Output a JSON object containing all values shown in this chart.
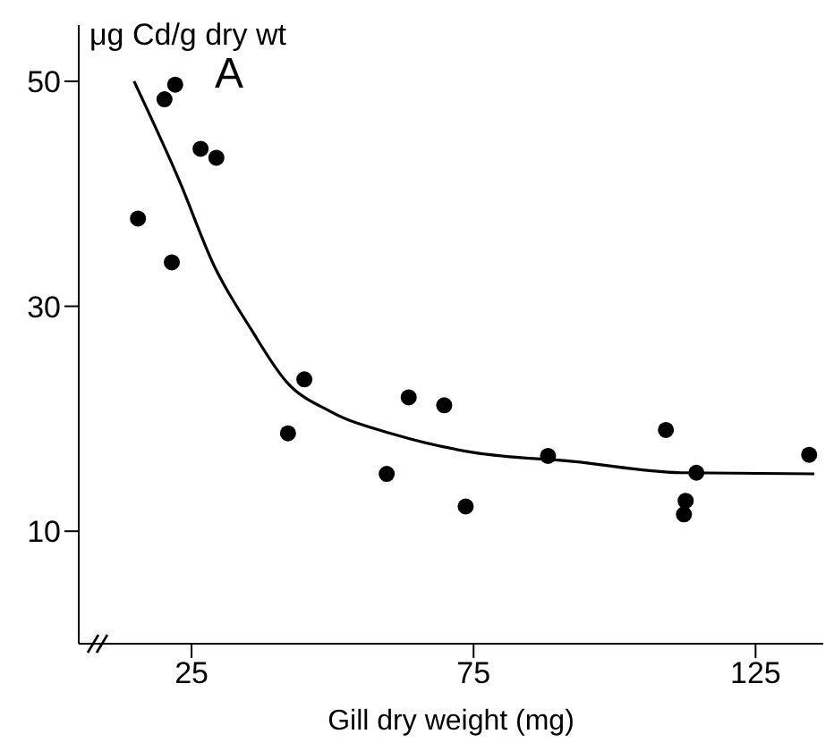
{
  "chart_data": {
    "type": "scatter",
    "ylabel": "μg Cd/g dry wt",
    "xlabel": "Gill dry weight (mg)",
    "annotations": [
      "A"
    ],
    "xlim": [
      5,
      137
    ],
    "xticks": [
      25,
      75,
      125
    ],
    "ylim": [
      0,
      55
    ],
    "yticks": [
      10,
      30,
      50
    ],
    "grid": false,
    "legend": false,
    "marker": "circle",
    "series": [
      {
        "color": "#000000",
        "x": [
          15.5,
          20.2,
          22.1,
          21.5,
          26.6,
          29.4,
          42.1,
          45,
          59.6,
          63.5,
          69.8,
          73.6,
          88.2,
          109.1,
          112.3,
          112.6,
          114.5,
          134.5
        ],
        "values": [
          37.8,
          48.4,
          49.7,
          33.9,
          44.0,
          43.2,
          18.7,
          23.5,
          15.1,
          21.9,
          21.2,
          12.2,
          16.7,
          19.0,
          11.5,
          12.7,
          15.2,
          16.8
        ]
      },
      {
        "type": "line",
        "color": "#000000",
        "marker": "none",
        "x": [
          14.8,
          22.8,
          29,
          35.5,
          41.8,
          49.8,
          61,
          75,
          92.6,
          111.7,
          135.4
        ],
        "values": [
          50,
          41.2,
          33.6,
          28,
          23.3,
          20.6,
          18.6,
          17,
          16.2,
          15.2,
          15.1
        ]
      }
    ]
  }
}
